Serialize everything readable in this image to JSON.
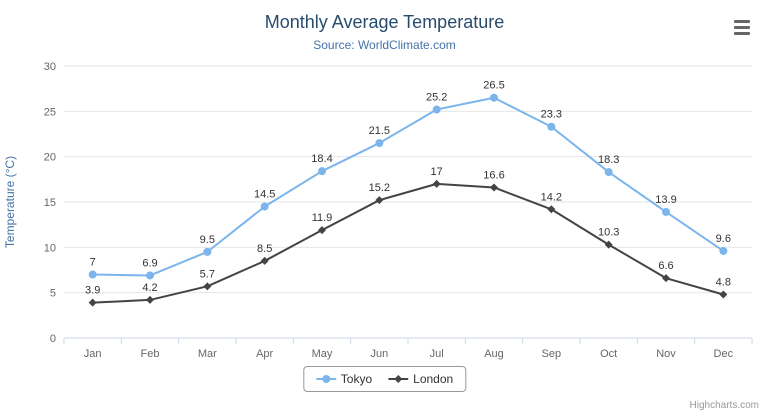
{
  "chart_data": {
    "type": "line",
    "title": "Monthly Average Temperature",
    "subtitle": "Source: WorldClimate.com",
    "categories": [
      "Jan",
      "Feb",
      "Mar",
      "Apr",
      "May",
      "Jun",
      "Jul",
      "Aug",
      "Sep",
      "Oct",
      "Nov",
      "Dec"
    ],
    "series": [
      {
        "name": "Tokyo",
        "color": "#7cb5ec",
        "marker": "circle",
        "values": [
          7,
          6.9,
          9.5,
          14.5,
          18.4,
          21.5,
          25.2,
          26.5,
          23.3,
          18.3,
          13.9,
          9.6
        ]
      },
      {
        "name": "London",
        "color": "#434348",
        "marker": "diamond",
        "values": [
          3.9,
          4.2,
          5.7,
          8.5,
          11.9,
          15.2,
          17,
          16.6,
          14.2,
          10.3,
          6.6,
          4.8
        ]
      }
    ],
    "xlabel": "",
    "ylabel": "Temperature (°C)",
    "ylim": [
      0,
      30
    ],
    "ytick_interval": 5,
    "grid": true,
    "legend_position": "bottom"
  },
  "credits": {
    "label": "Highcharts.com"
  },
  "colors": {
    "title": "#274b6d",
    "subtitle": "#4572a7",
    "axis_title": "#4572a7",
    "axis_labels": "#666666",
    "gridline": "#e6e6e6",
    "axis_line": "#ccd6eb",
    "data_label": "#333333",
    "legend_border": "#999999",
    "credits": "#999999",
    "tokyo_series": "#7cb5ec",
    "london_series": "#434348"
  },
  "menu": {
    "icon": "hamburger-menu"
  }
}
